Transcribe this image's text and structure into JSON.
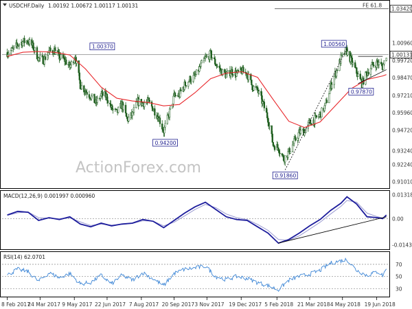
{
  "chart_data": [
    {
      "type": "candlestick",
      "panel": "price",
      "title": "USDCHF.Daily",
      "ohlc": "1.00192 1.00672 1.00117 1.00131",
      "watermark": "ActionForex.com",
      "ylim": [
        0.9075,
        1.0375
      ],
      "y_ticks": [
        "1.00960",
        "0.99720",
        "0.98470",
        "0.97210",
        "0.95960",
        "0.94720",
        "0.93240",
        "0.92240",
        "0.91010"
      ],
      "y_tick_values": [
        1.0096,
        0.9972,
        0.9847,
        0.9721,
        0.9596,
        0.9472,
        0.9324,
        0.9224,
        0.9101
      ],
      "current_price": {
        "label": "1.00131",
        "value": 1.00131
      },
      "fib_level": {
        "label": "FE 61.8",
        "value_label": "1.03420",
        "value": 1.0342
      },
      "labels": [
        {
          "text": "1.00370",
          "date": "2017-07-03",
          "value": 1.0037
        },
        {
          "text": "0.94200",
          "date": "2017-09-08",
          "value": 0.942
        },
        {
          "text": "0.91860",
          "date": "2018-02-16",
          "value": 0.9186
        },
        {
          "text": "1.00560",
          "date": "2018-05-10",
          "value": 1.0056
        },
        {
          "text": "0.97870",
          "date": "2018-05-29",
          "value": 0.9787
        }
      ],
      "close": [
        [
          "2017-02-08",
          1.0028
        ],
        [
          "2017-02-15",
          1.0045
        ],
        [
          "2017-02-22",
          1.0085
        ],
        [
          "2017-03-01",
          1.0105
        ],
        [
          "2017-03-08",
          1.0112
        ],
        [
          "2017-03-15",
          1.0065
        ],
        [
          "2017-03-22",
          0.9985
        ],
        [
          "2017-03-29",
          0.9975
        ],
        [
          "2017-04-05",
          1.0035
        ],
        [
          "2017-04-12",
          1.0045
        ],
        [
          "2017-04-19",
          0.9995
        ],
        [
          "2017-04-26",
          0.9975
        ],
        [
          "2017-05-03",
          0.9925
        ],
        [
          "2017-05-10",
          1.0005
        ],
        [
          "2017-05-17",
          0.9795
        ],
        [
          "2017-05-24",
          0.9755
        ],
        [
          "2017-05-31",
          0.9715
        ],
        [
          "2017-06-07",
          0.9665
        ],
        [
          "2017-06-14",
          0.9725
        ],
        [
          "2017-06-21",
          0.9715
        ],
        [
          "2017-06-28",
          0.9625
        ],
        [
          "2017-07-05",
          0.9595
        ],
        [
          "2017-07-12",
          0.9655
        ],
        [
          "2017-07-19",
          0.9545
        ],
        [
          "2017-07-26",
          0.9585
        ],
        [
          "2017-08-02",
          0.9675
        ],
        [
          "2017-08-09",
          0.9665
        ],
        [
          "2017-08-16",
          0.9675
        ],
        [
          "2017-08-23",
          0.9625
        ],
        [
          "2017-08-30",
          0.9565
        ],
        [
          "2017-09-06",
          0.9465
        ],
        [
          "2017-09-13",
          0.9585
        ],
        [
          "2017-09-20",
          0.9715
        ],
        [
          "2017-09-27",
          0.9725
        ],
        [
          "2017-10-04",
          0.9795
        ],
        [
          "2017-10-11",
          0.9835
        ],
        [
          "2017-10-18",
          0.9855
        ],
        [
          "2017-10-25",
          0.9925
        ],
        [
          "2017-11-01",
          0.9985
        ],
        [
          "2017-11-08",
          1.0015
        ],
        [
          "2017-11-15",
          0.9945
        ],
        [
          "2017-11-22",
          0.9895
        ],
        [
          "2017-11-29",
          0.9865
        ],
        [
          "2017-12-06",
          0.9895
        ],
        [
          "2017-12-13",
          0.9875
        ],
        [
          "2017-12-20",
          0.9895
        ],
        [
          "2017-12-27",
          0.9875
        ],
        [
          "2018-01-03",
          0.9785
        ],
        [
          "2018-01-10",
          0.9755
        ],
        [
          "2018-01-17",
          0.9665
        ],
        [
          "2018-01-24",
          0.9555
        ],
        [
          "2018-01-31",
          0.9365
        ],
        [
          "2018-02-07",
          0.9345
        ],
        [
          "2018-02-14",
          0.9265
        ],
        [
          "2018-02-21",
          0.9315
        ],
        [
          "2018-02-28",
          0.9385
        ],
        [
          "2018-03-07",
          0.9455
        ],
        [
          "2018-03-14",
          0.9465
        ],
        [
          "2018-03-21",
          0.9525
        ],
        [
          "2018-03-28",
          0.9545
        ],
        [
          "2018-04-04",
          0.9585
        ],
        [
          "2018-04-11",
          0.9645
        ],
        [
          "2018-04-18",
          0.9785
        ],
        [
          "2018-04-25",
          0.9885
        ],
        [
          "2018-05-02",
          0.9985
        ],
        [
          "2018-05-09",
          1.0045
        ],
        [
          "2018-05-16",
          0.9965
        ],
        [
          "2018-05-23",
          0.9885
        ],
        [
          "2018-05-30",
          0.9805
        ],
        [
          "2018-06-06",
          0.9885
        ],
        [
          "2018-06-13",
          0.9935
        ],
        [
          "2018-06-20",
          0.9955
        ],
        [
          "2018-06-27",
          0.9925
        ],
        [
          "2018-07-02",
          1.0013
        ]
      ],
      "ema_red": [
        [
          "2017-02-08",
          1.0
        ],
        [
          "2017-03-01",
          1.003
        ],
        [
          "2017-03-22",
          1.0035
        ],
        [
          "2017-04-12",
          1.003
        ],
        [
          "2017-05-03",
          1.001
        ],
        [
          "2017-05-24",
          0.991
        ],
        [
          "2017-06-14",
          0.978
        ],
        [
          "2017-07-05",
          0.97
        ],
        [
          "2017-07-26",
          0.968
        ],
        [
          "2017-08-16",
          0.967
        ],
        [
          "2017-09-06",
          0.9645
        ],
        [
          "2017-09-27",
          0.9655
        ],
        [
          "2017-10-18",
          0.974
        ],
        [
          "2017-11-08",
          0.984
        ],
        [
          "2017-11-29",
          0.988
        ],
        [
          "2017-12-20",
          0.989
        ],
        [
          "2018-01-10",
          0.985
        ],
        [
          "2018-01-31",
          0.969
        ],
        [
          "2018-02-21",
          0.9535
        ],
        [
          "2018-03-14",
          0.949
        ],
        [
          "2018-04-04",
          0.953
        ],
        [
          "2018-04-25",
          0.965
        ],
        [
          "2018-05-16",
          0.977
        ],
        [
          "2018-06-06",
          0.9835
        ],
        [
          "2018-06-27",
          0.986
        ],
        [
          "2018-07-02",
          0.987
        ]
      ],
      "trendlines": [
        {
          "from": [
            "2018-02-16",
            0.9186
          ],
          "to": [
            "2018-05-10",
            1.0056
          ],
          "style": "dashed"
        },
        {
          "from": [
            "2018-05-25",
            0.9805
          ],
          "to": [
            "2018-07-02",
            0.9905
          ],
          "style": "solid"
        },
        {
          "from": [
            "2018-05-25",
            1.0
          ],
          "to": [
            "2018-06-27",
            1.0
          ],
          "style": "solid"
        }
      ]
    },
    {
      "type": "line",
      "panel": "macd",
      "title": "MACD(12,26,9) 0.001997 0.000960",
      "ylim": [
        -0.0165,
        0.0145
      ],
      "y_ticks": [
        "0.013184",
        "0.00",
        "-0.014339"
      ],
      "y_tick_values": [
        0.013184,
        0,
        -0.014339
      ],
      "zero_line": 0,
      "series": [
        {
          "name": "MACD",
          "values": [
            [
              "2017-02-08",
              0.002
            ],
            [
              "2017-02-22",
              0.004
            ],
            [
              "2017-03-08",
              0.0035
            ],
            [
              "2017-03-22",
              -0.001
            ],
            [
              "2017-04-05",
              0.0005
            ],
            [
              "2017-04-19",
              -0.0005
            ],
            [
              "2017-05-03",
              0.001
            ],
            [
              "2017-05-17",
              -0.003
            ],
            [
              "2017-05-31",
              -0.0045
            ],
            [
              "2017-06-14",
              -0.0025
            ],
            [
              "2017-06-28",
              -0.004
            ],
            [
              "2017-07-12",
              -0.003
            ],
            [
              "2017-07-26",
              -0.0025
            ],
            [
              "2017-08-09",
              -0.0005
            ],
            [
              "2017-08-23",
              -0.0015
            ],
            [
              "2017-09-06",
              -0.005
            ],
            [
              "2017-09-20",
              -0.001
            ],
            [
              "2017-10-04",
              0.003
            ],
            [
              "2017-10-18",
              0.0065
            ],
            [
              "2017-11-01",
              0.009
            ],
            [
              "2017-11-15",
              0.005
            ],
            [
              "2017-11-29",
              0.001
            ],
            [
              "2017-12-13",
              -0.0005
            ],
            [
              "2017-12-27",
              -0.001
            ],
            [
              "2018-01-10",
              -0.0045
            ],
            [
              "2018-01-24",
              -0.008
            ],
            [
              "2018-02-07",
              -0.0135
            ],
            [
              "2018-02-21",
              -0.0115
            ],
            [
              "2018-03-07",
              -0.008
            ],
            [
              "2018-03-21",
              -0.004
            ],
            [
              "2018-04-04",
              -0.0005
            ],
            [
              "2018-04-18",
              0.0045
            ],
            [
              "2018-05-02",
              0.0085
            ],
            [
              "2018-05-10",
              0.012
            ],
            [
              "2018-05-23",
              0.008
            ],
            [
              "2018-06-06",
              0.001
            ],
            [
              "2018-06-20",
              0.0005
            ],
            [
              "2018-06-27",
              0.0
            ],
            [
              "2018-07-02",
              0.002
            ]
          ]
        },
        {
          "name": "Signal",
          "values": [
            [
              "2017-02-08",
              0.0018
            ],
            [
              "2017-02-22",
              0.0032
            ],
            [
              "2017-03-08",
              0.0036
            ],
            [
              "2017-03-22",
              0.0005
            ],
            [
              "2017-04-05",
              0.0002
            ],
            [
              "2017-04-19",
              0.0
            ],
            [
              "2017-05-03",
              0.0004
            ],
            [
              "2017-05-17",
              -0.0018
            ],
            [
              "2017-05-31",
              -0.0038
            ],
            [
              "2017-06-14",
              -0.003
            ],
            [
              "2017-06-28",
              -0.0036
            ],
            [
              "2017-07-12",
              -0.0032
            ],
            [
              "2017-07-26",
              -0.0027
            ],
            [
              "2017-08-09",
              -0.0012
            ],
            [
              "2017-08-23",
              -0.0014
            ],
            [
              "2017-09-06",
              -0.004
            ],
            [
              "2017-09-20",
              -0.002
            ],
            [
              "2017-10-04",
              0.0015
            ],
            [
              "2017-10-18",
              0.005
            ],
            [
              "2017-11-01",
              0.0078
            ],
            [
              "2017-11-15",
              0.006
            ],
            [
              "2017-11-29",
              0.0025
            ],
            [
              "2017-12-13",
              0.0005
            ],
            [
              "2017-12-27",
              -0.0005
            ],
            [
              "2018-01-10",
              -0.0032
            ],
            [
              "2018-01-24",
              -0.0065
            ],
            [
              "2018-02-07",
              -0.0115
            ],
            [
              "2018-02-21",
              -0.012
            ],
            [
              "2018-03-07",
              -0.0095
            ],
            [
              "2018-03-21",
              -0.0058
            ],
            [
              "2018-04-04",
              -0.002
            ],
            [
              "2018-04-18",
              0.0025
            ],
            [
              "2018-05-02",
              0.0068
            ],
            [
              "2018-05-10",
              0.01
            ],
            [
              "2018-05-23",
              0.009
            ],
            [
              "2018-06-06",
              0.003
            ],
            [
              "2018-06-20",
              0.001
            ],
            [
              "2018-06-27",
              0.0004
            ],
            [
              "2018-07-02",
              0.001
            ]
          ]
        }
      ],
      "trendlines": [
        {
          "from": [
            "2018-02-07",
            -0.0135
          ],
          "to": [
            "2018-07-02",
            0.001
          ],
          "style": "solid"
        }
      ]
    },
    {
      "type": "line",
      "panel": "rsi",
      "title": "RSI(14) 62.0701",
      "ylim": [
        18,
        88
      ],
      "y_ticks": [
        "70",
        "50",
        "30"
      ],
      "y_tick_values": [
        70,
        50,
        30
      ],
      "series": [
        {
          "name": "RSI",
          "values": [
            [
              "2017-02-08",
              52
            ],
            [
              "2017-02-22",
              62
            ],
            [
              "2017-03-08",
              58
            ],
            [
              "2017-03-22",
              42
            ],
            [
              "2017-04-05",
              56
            ],
            [
              "2017-04-19",
              48
            ],
            [
              "2017-05-03",
              55
            ],
            [
              "2017-05-17",
              38
            ],
            [
              "2017-05-31",
              40
            ],
            [
              "2017-06-14",
              52
            ],
            [
              "2017-06-28",
              38
            ],
            [
              "2017-07-12",
              52
            ],
            [
              "2017-07-26",
              44
            ],
            [
              "2017-08-09",
              56
            ],
            [
              "2017-08-23",
              46
            ],
            [
              "2017-09-06",
              35
            ],
            [
              "2017-09-20",
              55
            ],
            [
              "2017-10-04",
              62
            ],
            [
              "2017-10-18",
              64
            ],
            [
              "2017-11-01",
              67
            ],
            [
              "2017-11-15",
              50
            ],
            [
              "2017-11-29",
              45
            ],
            [
              "2017-12-13",
              50
            ],
            [
              "2017-12-27",
              47
            ],
            [
              "2018-01-10",
              40
            ],
            [
              "2018-01-24",
              35
            ],
            [
              "2018-02-07",
              28
            ],
            [
              "2018-02-21",
              44
            ],
            [
              "2018-03-07",
              50
            ],
            [
              "2018-03-21",
              54
            ],
            [
              "2018-04-04",
              60
            ],
            [
              "2018-04-18",
              72
            ],
            [
              "2018-05-02",
              76
            ],
            [
              "2018-05-10",
              78
            ],
            [
              "2018-05-23",
              60
            ],
            [
              "2018-06-06",
              52
            ],
            [
              "2018-06-20",
              58
            ],
            [
              "2018-06-27",
              52
            ],
            [
              "2018-07-02",
              62
            ]
          ]
        }
      ],
      "ref_lines": [
        70,
        50,
        30
      ]
    }
  ],
  "x_axis": {
    "ticks": [
      "8 Feb 2017",
      "24 Mar 2017",
      "9 May 2017",
      "22 Jun 2017",
      "7 Aug 2017",
      "20 Sep 2017",
      "3 Nov 2017",
      "19 Dec 2017",
      "5 Feb 2018",
      "21 Mar 2018",
      "4 May 2018",
      "19 Jun 2018"
    ],
    "tick_dates": [
      "2017-02-08",
      "2017-03-24",
      "2017-05-09",
      "2017-06-22",
      "2017-08-07",
      "2017-09-20",
      "2017-11-03",
      "2017-12-19",
      "2018-02-05",
      "2018-03-21",
      "2018-05-04",
      "2018-06-19"
    ],
    "range": [
      "2017-02-01",
      "2018-07-05"
    ]
  },
  "colors": {
    "candle": "#1e5e1e",
    "ema": "#e8262a",
    "macd": "#1c1c9c",
    "signal": "#9a9ad0",
    "rsi": "#3d86d6",
    "trend": "#000000",
    "label_border": "#1f1f8f"
  }
}
